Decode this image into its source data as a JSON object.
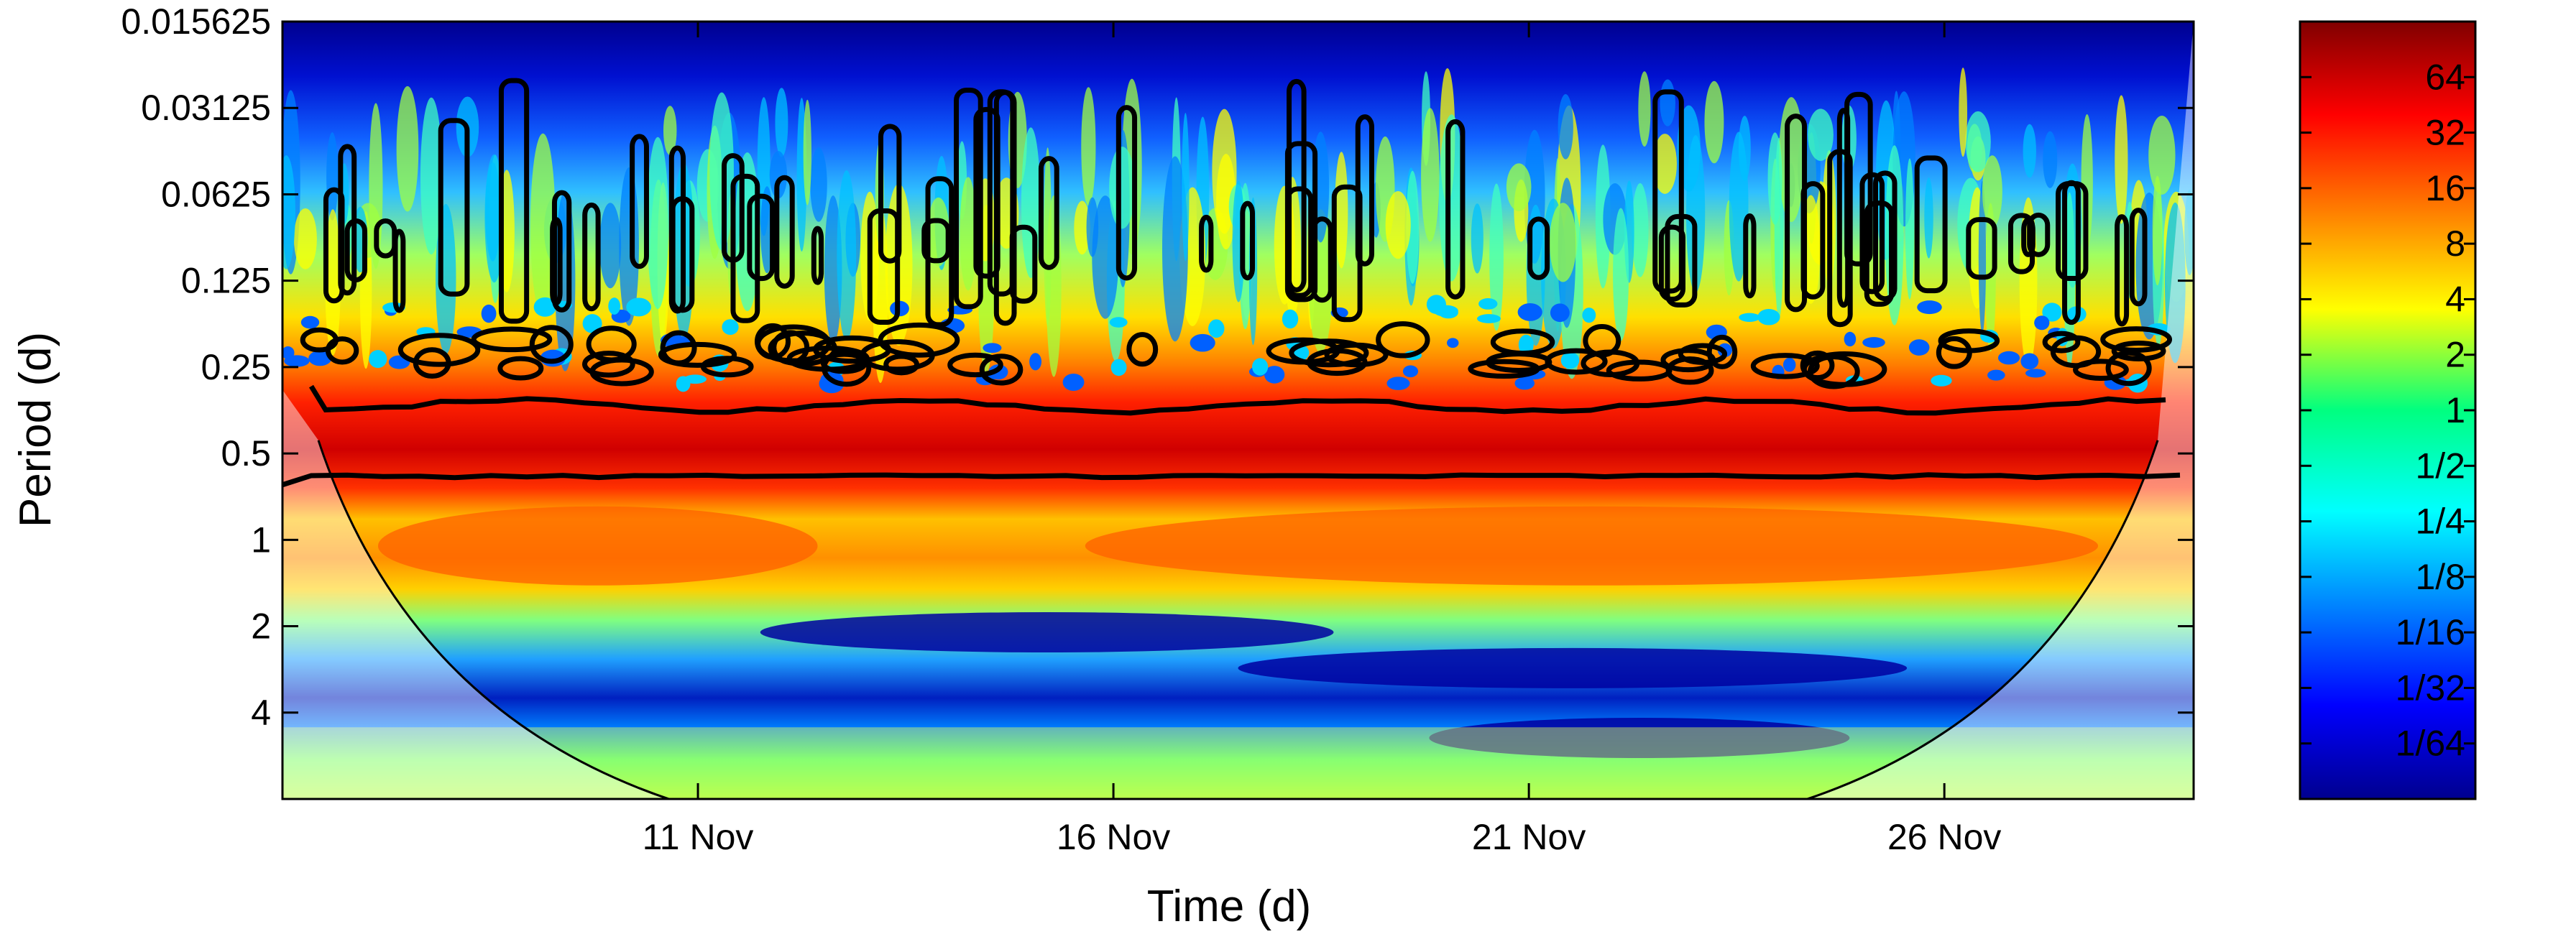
{
  "chart_data": {
    "type": "heatmap",
    "title": "",
    "xlabel": "Time (d)",
    "ylabel": "Period (d)",
    "x_ticks": [
      "11 Nov",
      "16 Nov",
      "21 Nov",
      "26 Nov"
    ],
    "x_range": [
      "6 Nov",
      "29 Nov"
    ],
    "y_scale": "log2",
    "y_ticks": [
      "0.015625",
      "0.03125",
      "0.0625",
      "0.125",
      "0.25",
      "0.5",
      "1",
      "2",
      "4"
    ],
    "y_range": [
      0.015625,
      8
    ],
    "colorbar": {
      "scale": "log2",
      "colormap": "jet",
      "ticks": [
        "64",
        "32",
        "16",
        "8",
        "4",
        "2",
        "1",
        "1/2",
        "1/4",
        "1/8",
        "1/16",
        "1/32",
        "1/64"
      ],
      "range": [
        "1/128",
        "128"
      ]
    },
    "features": {
      "dominant_band_period": [
        0.33,
        0.6
      ],
      "secondary_band_period": [
        0.8,
        1.5
      ],
      "low_power_period": [
        2,
        3
      ],
      "cone_of_influence_max_period": 7,
      "significance_contours": true
    },
    "colors": {
      "low": "#00008f",
      "mid": "#00ff80",
      "high": "#800000",
      "contour": "#000000"
    }
  }
}
